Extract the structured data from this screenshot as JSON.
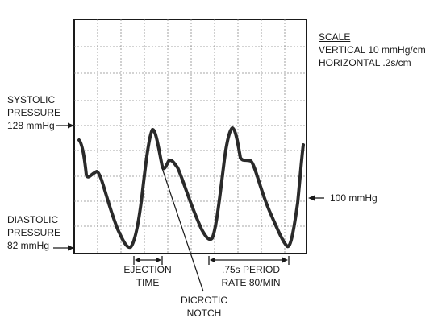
{
  "scale": {
    "title": "SCALE",
    "vertical": "VERTICAL 10 mmHg/cm",
    "horizontal": "HORIZONTAL .2s/cm"
  },
  "systolic": {
    "line1": "SYSTOLIC",
    "line2": "PRESSURE",
    "value": "128 mmHg"
  },
  "diastolic": {
    "line1": "DIASTOLIC",
    "line2": "PRESSURE",
    "value": "82 mmHg"
  },
  "reference": {
    "value": "100 mmHg"
  },
  "ejection": {
    "line1": "EJECTION",
    "line2": "TIME"
  },
  "period": {
    "line1": ".75s PERIOD",
    "line2": "RATE 80/MIN"
  },
  "notch": {
    "line1": "DICROTIC",
    "line2": "NOTCH"
  }
}
